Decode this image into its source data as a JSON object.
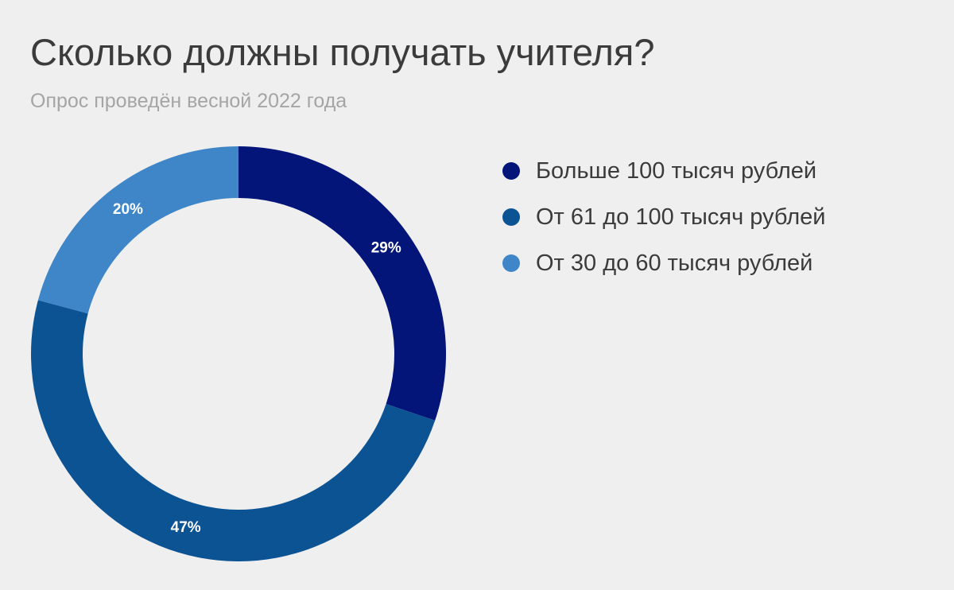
{
  "title": "Сколько должны получать учителя?",
  "subtitle": "Опрос проведён весной 2022 года",
  "chart_data": {
    "type": "pie",
    "style": "donut",
    "legend_position": "right",
    "slices": [
      {
        "label": "Больше 100 тысяч рублей",
        "value": 29,
        "display": "29%",
        "color": "#04157a"
      },
      {
        "label": "От 61 до 100 тысяч рублей",
        "value": 47,
        "display": "47%",
        "color": "#0c5394"
      },
      {
        "label": "От 30 до 60 тысяч рублей",
        "value": 20,
        "display": "20%",
        "color": "#3e86c8"
      }
    ]
  }
}
